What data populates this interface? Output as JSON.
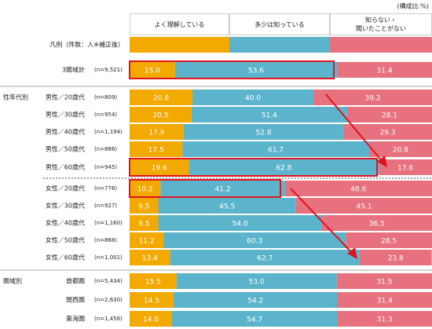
{
  "chart_data": {
    "type": "bar",
    "orientation": "horizontal",
    "stacked": true,
    "unit_note": "(構成比:%)",
    "legend_label": "凡例（件数：人※補正後）",
    "xlim": [
      0,
      100
    ],
    "groups": [
      {
        "label": "性年代別",
        "start": 1
      },
      {
        "label": "圏域別",
        "start": 11
      }
    ],
    "categories": [
      "3圏域計",
      "男性／20歳代",
      "男性／30歳代",
      "男性／40歳代",
      "男性／50歳代",
      "男性／60歳代",
      "女性／20歳代",
      "女性／30歳代",
      "女性／40歳代",
      "女性／50歳代",
      "女性／60歳代",
      "首都圏",
      "関西圏",
      "東海圏"
    ],
    "sample_sizes": [
      "(n=9,521)",
      "(n=809)",
      "(n=954)",
      "(n=1,194)",
      "(n=886)",
      "(n=945)",
      "(n=776)",
      "(n=927)",
      "(n=1,160)",
      "(n=868)",
      "(n=1,001)",
      "(n=5,434)",
      "(n=2,630)",
      "(n=1,456)"
    ],
    "series": [
      {
        "name": "よく理解している",
        "color": "#f2a900",
        "values": [
          15.0,
          20.8,
          20.5,
          17.9,
          17.5,
          19.6,
          10.2,
          9.5,
          9.5,
          11.2,
          13.4,
          15.5,
          14.5,
          14.0
        ],
        "value_labels": [
          "15.0",
          "20.8",
          "20.5",
          "17.9",
          "17.5",
          "19.6",
          "10.2",
          "9.5",
          "9.5",
          "11.2",
          "13.4",
          "15.5",
          "14.5",
          "14.0"
        ]
      },
      {
        "name": "多少は知っている",
        "color": "#5bb4cb",
        "values": [
          53.6,
          40.0,
          51.4,
          52.8,
          61.7,
          62.8,
          41.2,
          45.5,
          54.0,
          60.3,
          62.7,
          53.0,
          54.2,
          54.7
        ],
        "value_labels": [
          "53.6",
          "40.0",
          "51.4",
          "52.8",
          "61.7",
          "62.8",
          "41.2",
          "45.5",
          "54.0",
          "60.3",
          "62.7",
          "53.0",
          "54.2",
          "54.7"
        ]
      },
      {
        "name": "知らない・\n聞いたことがない",
        "color": "#e7717f",
        "values": [
          31.4,
          39.2,
          28.1,
          29.3,
          20.8,
          17.6,
          48.6,
          45.1,
          36.5,
          28.5,
          23.8,
          31.5,
          31.4,
          31.3
        ],
        "value_labels": [
          "31.4",
          "39.2",
          "28.1",
          "29.3",
          "20.8",
          "17.6",
          "48.6",
          "45.1",
          "36.5",
          "28.5",
          "23.8",
          "31.5",
          "31.4",
          "31.3"
        ]
      }
    ]
  }
}
